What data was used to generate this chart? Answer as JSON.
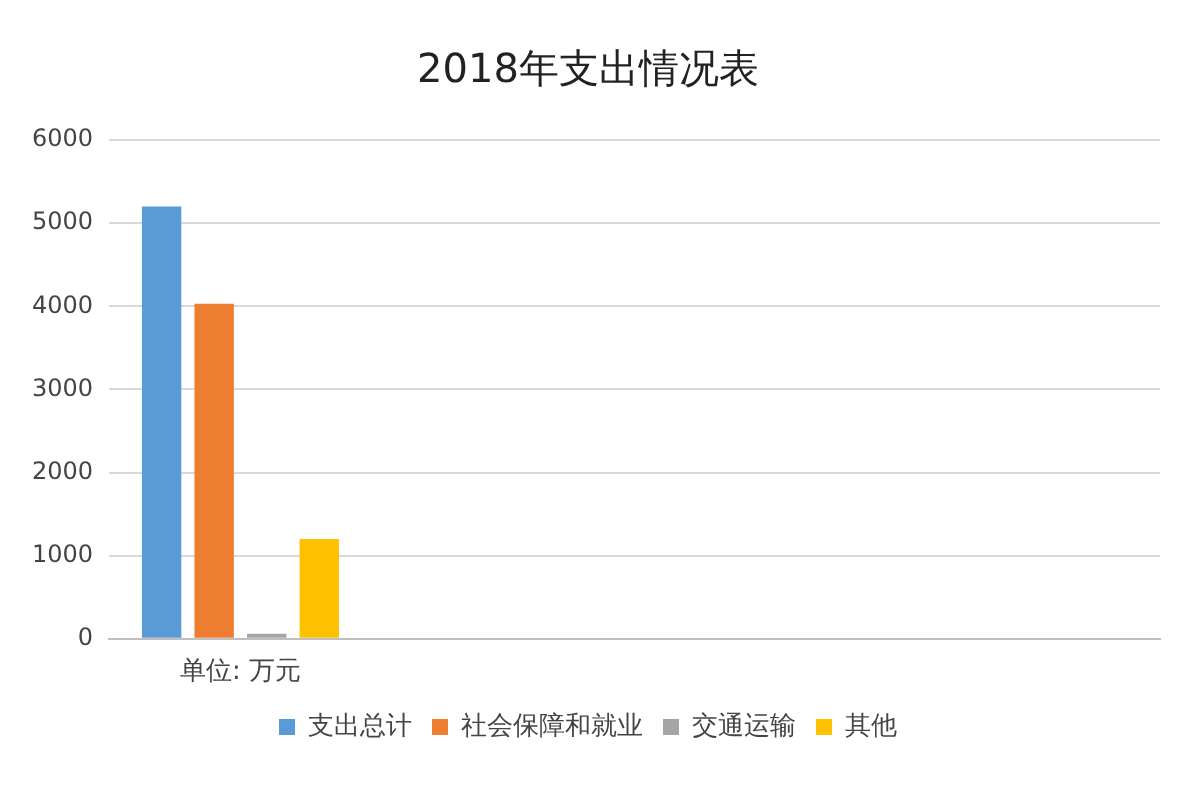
{
  "chart_data": {
    "type": "bar",
    "title": "2018年支出情况表",
    "categories": [
      "单位: 万元",
      null,
      null,
      null
    ],
    "series": [
      {
        "name": "支出总计",
        "color": "#5b9bd5",
        "values": [
          5200,
          null,
          null,
          null
        ]
      },
      {
        "name": "社会保障和就业",
        "color": "#ed7d31",
        "values": [
          4030,
          null,
          null,
          null
        ]
      },
      {
        "name": "交通运输",
        "color": "#a5a5a5",
        "values": [
          60,
          null,
          null,
          null
        ]
      },
      {
        "name": "其他",
        "color": "#ffc000",
        "values": [
          1200,
          null,
          null,
          null
        ]
      }
    ],
    "ylim": [
      0,
      6000
    ],
    "yticks": [
      0,
      1000,
      2000,
      3000,
      4000,
      5000,
      6000
    ],
    "grid": "y",
    "legend": "bottom"
  }
}
